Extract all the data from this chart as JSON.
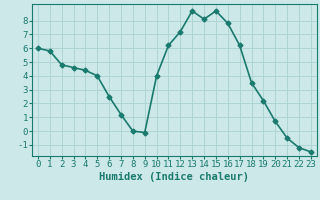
{
  "x": [
    0,
    1,
    2,
    3,
    4,
    5,
    6,
    7,
    8,
    9,
    10,
    11,
    12,
    13,
    14,
    15,
    16,
    17,
    18,
    19,
    20,
    21,
    22,
    23
  ],
  "y": [
    6,
    5.8,
    4.8,
    4.6,
    4.4,
    4.0,
    2.5,
    1.2,
    0.0,
    -0.1,
    4.0,
    6.2,
    7.2,
    8.7,
    8.1,
    8.7,
    7.8,
    6.2,
    3.5,
    2.2,
    0.7,
    -0.5,
    -1.2,
    -1.5
  ],
  "line_color": "#1a7a6e",
  "marker": "D",
  "marker_size": 2.5,
  "bg_color": "#cce8e8",
  "grid_color": "#aed4d4",
  "xlabel": "Humidex (Indice chaleur)",
  "xlim": [
    -0.5,
    23.5
  ],
  "ylim": [
    -1.8,
    9.2
  ],
  "yticks": [
    -1,
    0,
    1,
    2,
    3,
    4,
    5,
    6,
    7,
    8
  ],
  "xticks": [
    0,
    1,
    2,
    3,
    4,
    5,
    6,
    7,
    8,
    9,
    10,
    11,
    12,
    13,
    14,
    15,
    16,
    17,
    18,
    19,
    20,
    21,
    22,
    23
  ],
  "tick_color": "#1a7a6e",
  "label_color": "#1a7a6e",
  "font_size": 6.5,
  "xlabel_fontsize": 7.5,
  "linewidth": 1.2
}
